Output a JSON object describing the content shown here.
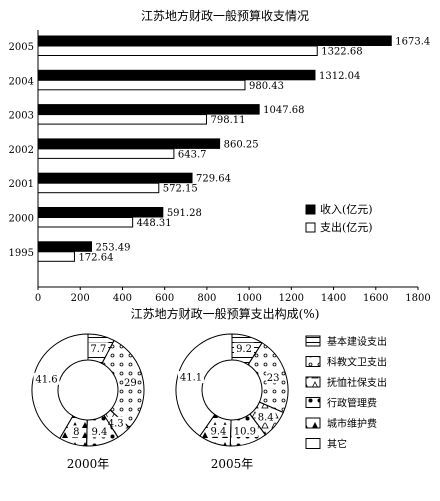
{
  "chart_data": [
    {
      "type": "bar",
      "orientation": "horizontal",
      "title": "江苏地方财政一般预算收支情况",
      "categories": [
        "2005",
        "2004",
        "2003",
        "2002",
        "2001",
        "2000",
        "1995"
      ],
      "series": [
        {
          "name": "收入(亿元)",
          "color": "#000000",
          "values": [
            1673.4,
            1312.04,
            1047.68,
            860.25,
            729.64,
            591.28,
            253.49
          ]
        },
        {
          "name": "支出(亿元)",
          "color": "#ffffff",
          "values": [
            1322.68,
            980.43,
            798.11,
            643.7,
            572.15,
            448.31,
            172.64
          ]
        }
      ],
      "value_labels": [
        [
          "1673.4",
          "1322.68"
        ],
        [
          "1312.04",
          "980.43"
        ],
        [
          "1047.68",
          "798.11"
        ],
        [
          "860.25",
          "643.7"
        ],
        [
          "729.64",
          "572.15"
        ],
        [
          "591.28",
          "448.31"
        ],
        [
          "253.49",
          "172.64"
        ]
      ],
      "xlim": [
        0,
        1800
      ],
      "xticks": [
        "0",
        "200",
        "400",
        "600",
        "800",
        "1000",
        "1200",
        "1400",
        "1600",
        "1800"
      ],
      "grid": false,
      "legend_position": "right"
    },
    {
      "type": "pie",
      "variant": "donut",
      "title": "江苏地方财政一般预算支出构成(%)",
      "legend_position": "right",
      "legend": [
        {
          "name": "基本建设支出",
          "pattern": "hlines"
        },
        {
          "name": "科教文卫支出",
          "pattern": "circles"
        },
        {
          "name": "抚恤社保支出",
          "pattern": "triangles-open"
        },
        {
          "name": "行政管理费",
          "pattern": "dots"
        },
        {
          "name": "城市维护费",
          "pattern": "triangles-filled"
        },
        {
          "name": "其它",
          "pattern": "none"
        }
      ],
      "pies": [
        {
          "label": "2000年",
          "values": [
            7.7,
            29,
            4.3,
            9.4,
            8,
            41.6
          ],
          "value_labels": [
            "7.7",
            "29",
            "4.3",
            "9.4",
            "8",
            "41.6"
          ]
        },
        {
          "label": "2005年",
          "values": [
            9.2,
            23,
            8.4,
            10.9,
            9.4,
            41.1
          ],
          "value_labels": [
            "9.2",
            "23",
            "8.4",
            "10.9",
            "9.4",
            "41.1"
          ]
        }
      ]
    }
  ]
}
